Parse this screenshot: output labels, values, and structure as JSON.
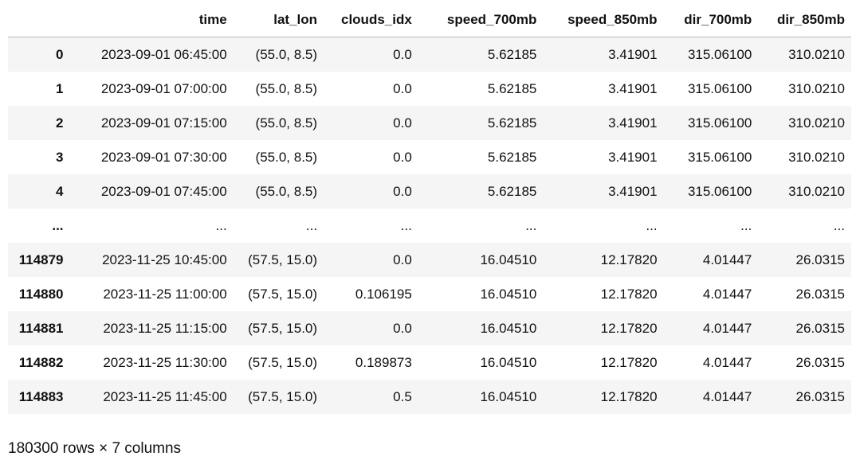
{
  "table": {
    "index_header": "",
    "columns": [
      "time",
      "lat_lon",
      "clouds_idx",
      "speed_700mb",
      "speed_850mb",
      "dir_700mb",
      "dir_850mb"
    ],
    "rows": [
      {
        "index": "0",
        "cells": [
          "2023-09-01 06:45:00",
          "(55.0, 8.5)",
          "0.0",
          "5.62185",
          "3.41901",
          "315.06100",
          "310.0210"
        ]
      },
      {
        "index": "1",
        "cells": [
          "2023-09-01 07:00:00",
          "(55.0, 8.5)",
          "0.0",
          "5.62185",
          "3.41901",
          "315.06100",
          "310.0210"
        ]
      },
      {
        "index": "2",
        "cells": [
          "2023-09-01 07:15:00",
          "(55.0, 8.5)",
          "0.0",
          "5.62185",
          "3.41901",
          "315.06100",
          "310.0210"
        ]
      },
      {
        "index": "3",
        "cells": [
          "2023-09-01 07:30:00",
          "(55.0, 8.5)",
          "0.0",
          "5.62185",
          "3.41901",
          "315.06100",
          "310.0210"
        ]
      },
      {
        "index": "4",
        "cells": [
          "2023-09-01 07:45:00",
          "(55.0, 8.5)",
          "0.0",
          "5.62185",
          "3.41901",
          "315.06100",
          "310.0210"
        ]
      },
      {
        "index": "...",
        "cells": [
          "...",
          "...",
          "...",
          "...",
          "...",
          "...",
          "..."
        ]
      },
      {
        "index": "114879",
        "cells": [
          "2023-11-25 10:45:00",
          "(57.5, 15.0)",
          "0.0",
          "16.04510",
          "12.17820",
          "4.01447",
          "26.0315"
        ]
      },
      {
        "index": "114880",
        "cells": [
          "2023-11-25 11:00:00",
          "(57.5, 15.0)",
          "0.106195",
          "16.04510",
          "12.17820",
          "4.01447",
          "26.0315"
        ]
      },
      {
        "index": "114881",
        "cells": [
          "2023-11-25 11:15:00",
          "(57.5, 15.0)",
          "0.0",
          "16.04510",
          "12.17820",
          "4.01447",
          "26.0315"
        ]
      },
      {
        "index": "114882",
        "cells": [
          "2023-11-25 11:30:00",
          "(57.5, 15.0)",
          "0.189873",
          "16.04510",
          "12.17820",
          "4.01447",
          "26.0315"
        ]
      },
      {
        "index": "114883",
        "cells": [
          "2023-11-25 11:45:00",
          "(57.5, 15.0)",
          "0.5",
          "16.04510",
          "12.17820",
          "4.01447",
          "26.0315"
        ]
      }
    ]
  },
  "footer": {
    "shape_text": "180300 rows × 7 columns"
  },
  "colors": {
    "striped_row": "#f5f5f5",
    "plain_row": "#ffffff",
    "header_rule": "#bbbbbb",
    "text": "#111111"
  }
}
